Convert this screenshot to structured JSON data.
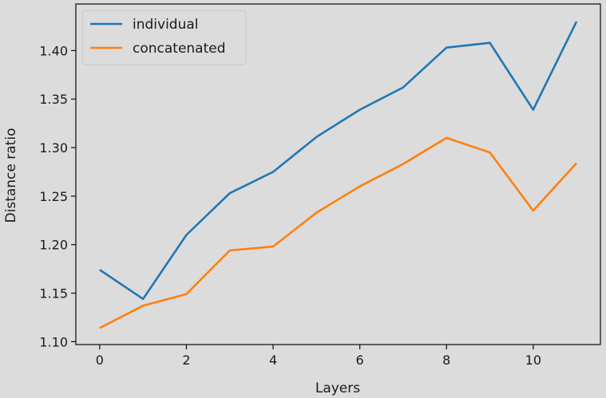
{
  "chart_data": {
    "type": "line",
    "xlabel": "Layers",
    "ylabel": "Distance ratio",
    "xlim": [
      -0.55,
      11.55
    ],
    "ylim": [
      1.097,
      1.448
    ],
    "x_ticks": [
      0,
      2,
      4,
      6,
      8,
      10
    ],
    "y_ticks": [
      1.1,
      1.15,
      1.2,
      1.25,
      1.3,
      1.35,
      1.4
    ],
    "grid": false,
    "legend_position": "top-left",
    "x": [
      0,
      1,
      2,
      3,
      4,
      5,
      6,
      7,
      8,
      9,
      10,
      11
    ],
    "series": [
      {
        "name": "individual",
        "color": "#1f77b4",
        "values": [
          1.174,
          1.144,
          1.21,
          1.253,
          1.275,
          1.311,
          1.339,
          1.362,
          1.403,
          1.408,
          1.339,
          1.43
        ]
      },
      {
        "name": "concatenated",
        "color": "#ff7f0e",
        "values": [
          1.114,
          1.137,
          1.149,
          1.194,
          1.198,
          1.233,
          1.26,
          1.283,
          1.31,
          1.295,
          1.235,
          1.284
        ]
      }
    ]
  }
}
